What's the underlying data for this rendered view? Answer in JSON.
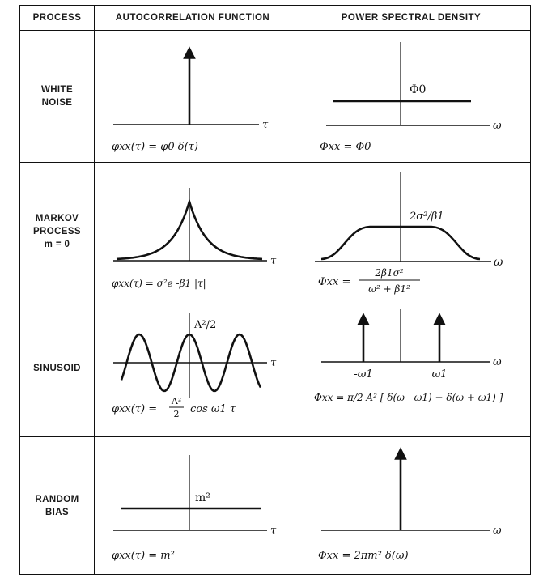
{
  "headers": {
    "process": "PROCESS",
    "autocorrelation": "AUTOCORRELATION FUNCTION",
    "psd": "POWER SPECTRAL DENSITY"
  },
  "rows": [
    {
      "process_lines": [
        "WHITE",
        "NOISE"
      ],
      "acf_axis": "τ",
      "acf_label": "",
      "acf_formula": "φxx(τ) = φ0 δ(τ)",
      "psd_axis": "ω",
      "psd_label": "Φ0",
      "psd_formula": "Φxx = Φ0"
    },
    {
      "process_lines": [
        "MARKOV",
        "PROCESS",
        "m = 0"
      ],
      "acf_axis": "τ",
      "acf_label": "",
      "acf_formula": "φxx(τ) = σ²e -β1 |τ|",
      "psd_axis": "ω",
      "psd_label": "2σ²/β1",
      "psd_formula_lhs": "Φxx =",
      "psd_formula_num": "2β1σ²",
      "psd_formula_den": "ω² + β1²"
    },
    {
      "process_lines": [
        "SINUSOID"
      ],
      "acf_axis": "τ",
      "acf_label": "A²/2",
      "acf_formula_lhs": "φxx(τ) =",
      "acf_formula_num": "A²",
      "acf_formula_den": "2",
      "acf_formula_rhs": "cos ω1 τ",
      "psd_axis": "ω",
      "psd_tick_left": "-ω1",
      "psd_tick_right": "ω1",
      "psd_formula": "Φxx = π/2 A² [ δ(ω - ω1) + δ(ω + ω1) ]"
    },
    {
      "process_lines": [
        "RANDOM",
        "BIAS"
      ],
      "acf_axis": "τ",
      "acf_label": "m²",
      "acf_formula": "φxx(τ) = m²",
      "psd_axis": "ω",
      "psd_label": "",
      "psd_formula": "Φxx = 2πm² δ(ω)"
    }
  ]
}
